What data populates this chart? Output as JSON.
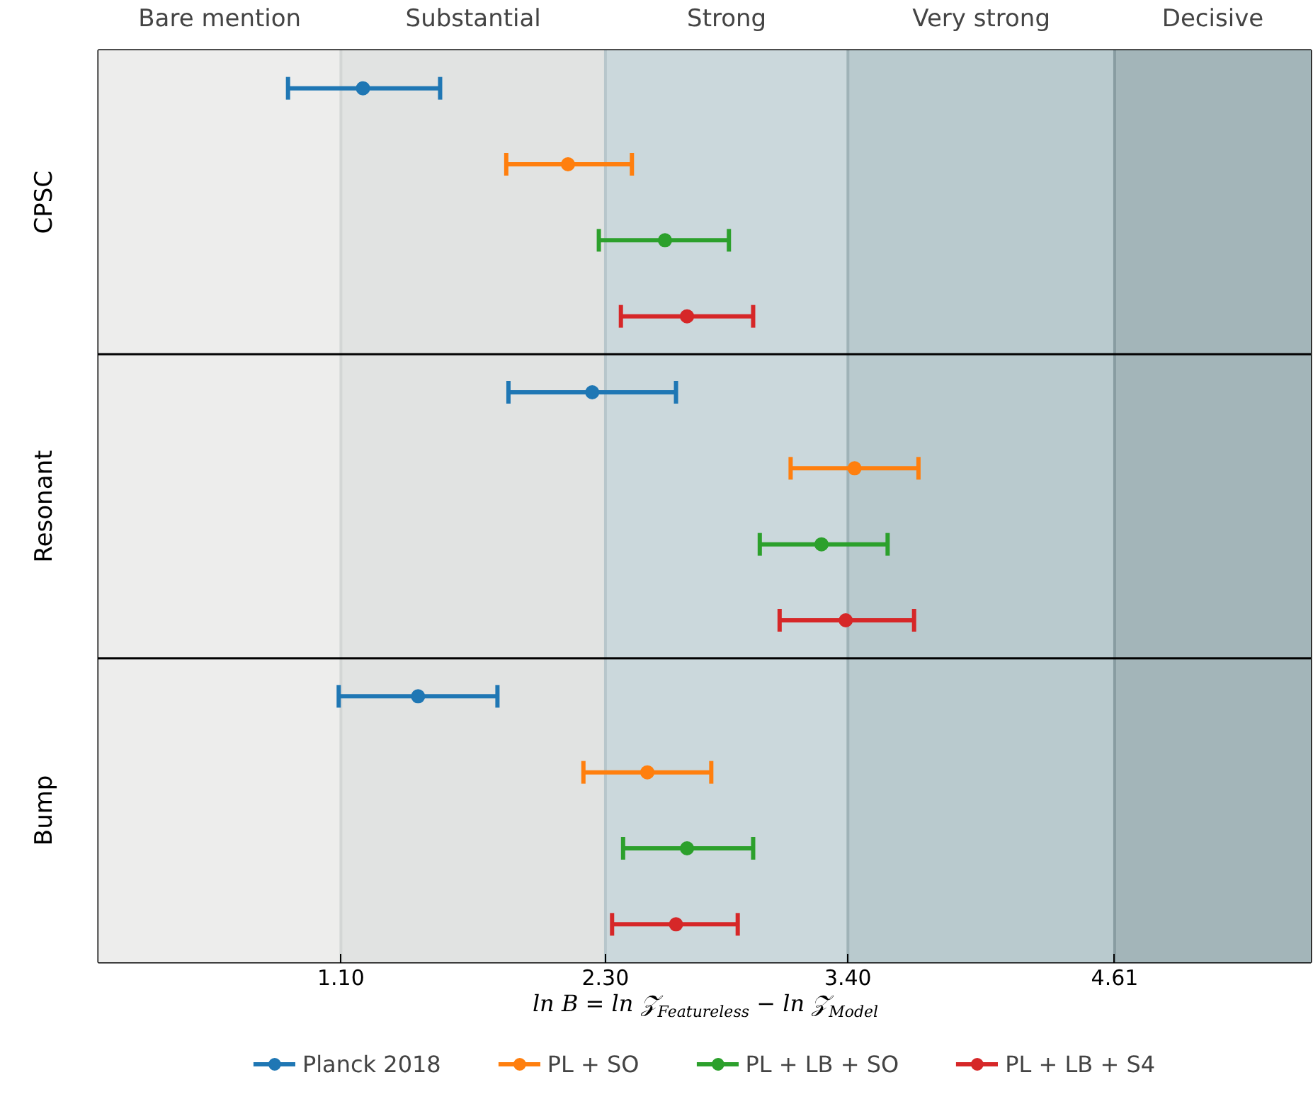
{
  "chart_data": {
    "type": "scatter",
    "orientation": "horizontal",
    "xlabel": "ln B = ln 𝒵$_{Featureless}$ − ln 𝒵$_{Model}$",
    "categories": [
      null,
      null,
      null,
      null,
      null,
      null,
      null,
      null,
      null,
      null,
      null,
      null
    ],
    "xlim": [
      0,
      5.5
    ],
    "xticks": [
      {
        "value": 1.1,
        "label": "1.10"
      },
      {
        "value": 2.3,
        "label": "2.30"
      },
      {
        "value": 3.4,
        "label": "3.40"
      },
      {
        "value": 4.61,
        "label": "4.61"
      }
    ],
    "legend": "bottom",
    "marker": "circle",
    "annotations": [
      "CPSC",
      "Resonant",
      "Bump"
    ],
    "bands": [
      {
        "axis": "x",
        "from": 0,
        "to": 1.1,
        "label": "Bare mention",
        "color": "#ededec"
      },
      {
        "axis": "x",
        "from": 1.1,
        "to": 2.3,
        "label": "Substantial",
        "color": "#e1e3e2"
      },
      {
        "axis": "x",
        "from": 2.3,
        "to": 3.4,
        "label": "Strong",
        "color": "#cbd8dc"
      },
      {
        "axis": "x",
        "from": 3.4,
        "to": 4.61,
        "label": "Very strong",
        "color": "#b9cace"
      },
      {
        "axis": "x",
        "from": 4.61,
        "to": 5.5,
        "label": "Decisive",
        "color": "#a3b5b9"
      }
    ],
    "ref_lines": [
      {
        "axis": "x",
        "value": 1.1,
        "color": "#d3d6d5"
      },
      {
        "axis": "x",
        "value": 2.3,
        "color": "#b7c6cb"
      },
      {
        "axis": "x",
        "value": 3.4,
        "color": "#9fb2b7"
      },
      {
        "axis": "x",
        "value": 4.61,
        "color": "#889ca1"
      }
    ],
    "series": [
      {
        "name": "Planck 2018",
        "color": "#1f77b4",
        "values": [
          1.2,
          null,
          null,
          null,
          2.24,
          null,
          null,
          null,
          1.45,
          null,
          null,
          null
        ],
        "errors": [
          [
            0.86,
            1.55
          ],
          null,
          null,
          null,
          [
            1.86,
            2.62
          ],
          null,
          null,
          null,
          [
            1.09,
            1.81
          ],
          null,
          null,
          null
        ]
      },
      {
        "name": "PL + SO",
        "color": "#ff7f0e",
        "values": [
          null,
          2.13,
          null,
          null,
          null,
          3.43,
          null,
          null,
          null,
          2.49,
          null,
          null
        ],
        "errors": [
          null,
          [
            1.85,
            2.42
          ],
          null,
          null,
          null,
          [
            3.14,
            3.72
          ],
          null,
          null,
          null,
          [
            2.2,
            2.78
          ],
          null,
          null
        ]
      },
      {
        "name": "PL + LB + SO",
        "color": "#2ca02c",
        "values": [
          null,
          null,
          2.57,
          null,
          null,
          null,
          3.28,
          null,
          null,
          null,
          2.67,
          null
        ],
        "errors": [
          null,
          null,
          [
            2.27,
            2.86
          ],
          null,
          null,
          null,
          [
            3.0,
            3.58
          ],
          null,
          null,
          null,
          [
            2.38,
            2.97
          ],
          null
        ]
      },
      {
        "name": "PL + LB + S4",
        "color": "#d62728",
        "values": [
          null,
          null,
          null,
          2.67,
          null,
          null,
          null,
          3.39,
          null,
          null,
          null,
          2.62
        ],
        "errors": [
          null,
          null,
          null,
          [
            2.37,
            2.97
          ],
          null,
          null,
          null,
          [
            3.09,
            3.7
          ],
          null,
          null,
          null,
          [
            2.33,
            2.9
          ]
        ]
      }
    ]
  }
}
